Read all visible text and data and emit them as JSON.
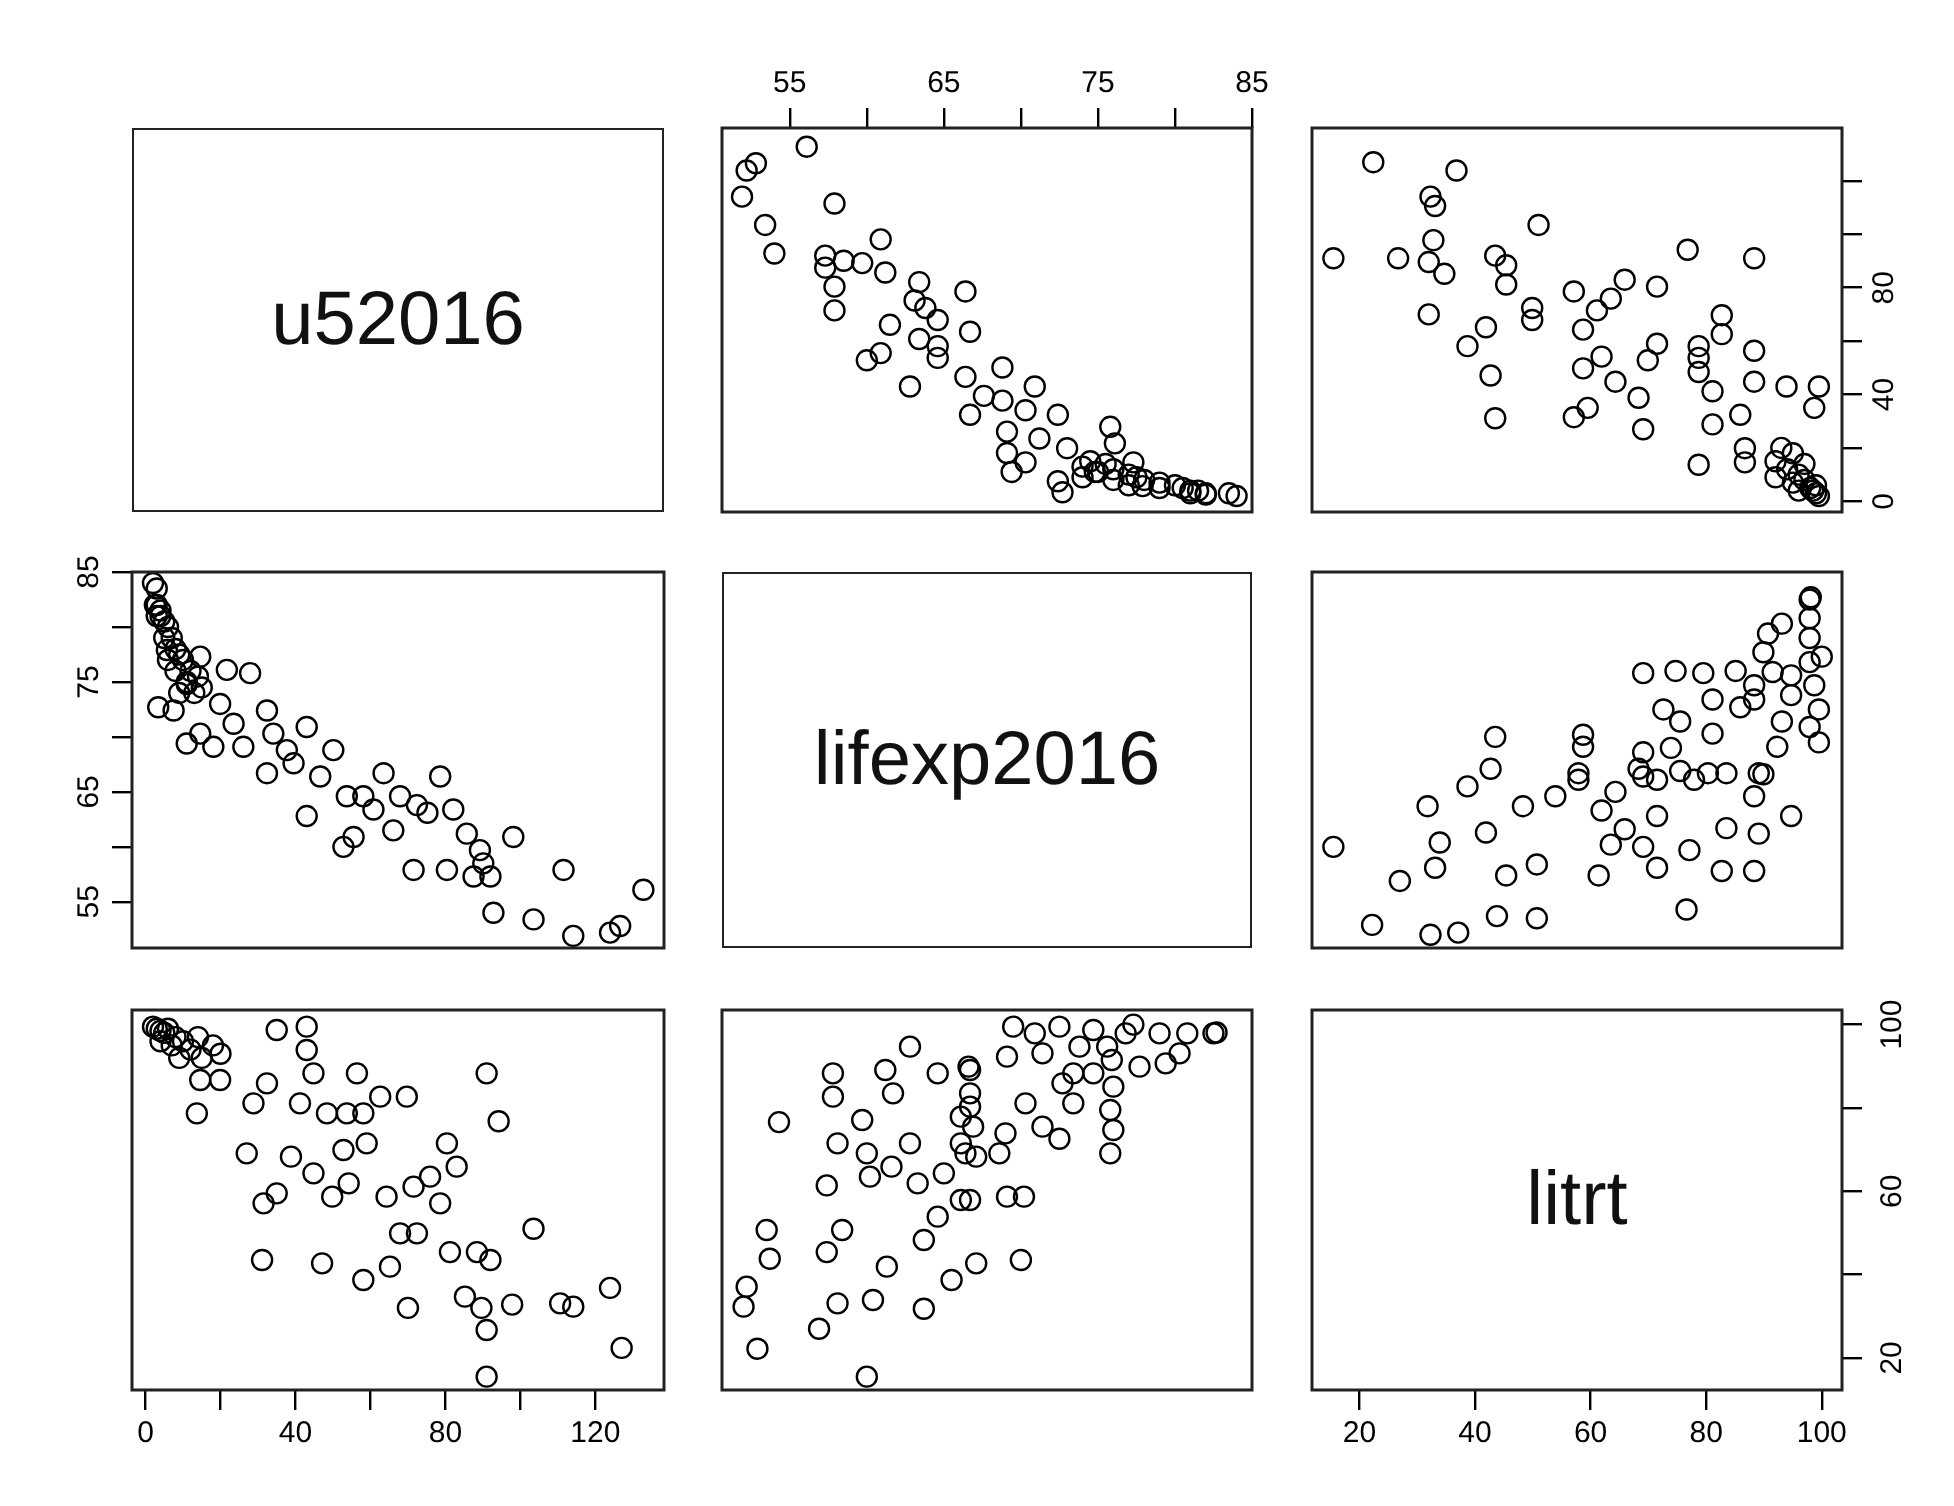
{
  "chart_data": [
    {
      "type": "other",
      "title": "u52016"
    },
    {
      "type": "scatter",
      "color": "#000000",
      "marker": "circle",
      "tick_labels": "x",
      "xlim": [
        50.6,
        85
      ],
      "xticks": [
        55,
        {
          "value": 60,
          "label": null
        },
        65,
        {
          "value": 70,
          "label": null
        },
        75,
        {
          "value": 80,
          "label": null
        },
        85
      ],
      "ylim": [
        -4,
        139.8
      ],
      "x": [
        84,
        83.5,
        82,
        81.5,
        81,
        80.5,
        81,
        82,
        80,
        79,
        79,
        78,
        77.5,
        77,
        77,
        76,
        76,
        75,
        75.5,
        74.5,
        74,
        74,
        72.7,
        69.4,
        69.1,
        70.3,
        69.1,
        75.8,
        72.4,
        70.3,
        66.7,
        70.9,
        62.8,
        68.8,
        60.0,
        60.9,
        64.6,
        66.7,
        63.4,
        61.5,
        57.9,
        63.8,
        66.4,
        57.9,
        63.4,
        61.2,
        59.7,
        57.3,
        60.9,
        54.0,
        53.4,
        57.9,
        51.9,
        52.2,
        52.8,
        56.1,
        68.8,
        66.4,
        64.6,
        67.6,
        71.2,
        73.0,
        74.8,
        77.9,
        77.3,
        76.1,
        72.4,
        64.6,
        57.3,
        63.1,
        58.5
      ],
      "values": [
        2,
        3,
        3,
        4,
        4,
        5,
        3,
        2.5,
        6,
        7,
        5,
        8,
        9,
        10,
        6,
        8,
        12,
        11,
        14,
        15,
        13,
        9,
        3.4,
        11,
        18.1,
        14.6,
        26.1,
        27.9,
        32.4,
        34.1,
        32.4,
        43,
        43,
        50.1,
        52.8,
        55.5,
        58.1,
        63.5,
        60.8,
        66.1,
        71.5,
        72.4,
        78.6,
        80.4,
        82.1,
        85.7,
        89.2,
        92,
        98.1,
        92.8,
        103.5,
        111.5,
        114.1,
        123.9,
        126.6,
        132.8,
        37.7,
        46.6,
        53.7,
        39.5,
        23.5,
        19.9,
        11,
        5.7,
        14.6,
        21.7,
        7.5,
        67.9,
        87.5,
        75.2,
        90.1
      ]
    },
    {
      "type": "scatter",
      "color": "#000000",
      "marker": "circle",
      "tick_labels": "y",
      "xlim": [
        11.8,
        103.5
      ],
      "ylim": [
        -4,
        139.8
      ],
      "yticks": [
        0,
        {
          "value": 20,
          "label": null
        },
        40,
        {
          "value": 60,
          "label": null
        },
        80,
        {
          "value": 100,
          "label": null
        },
        {
          "value": 120,
          "label": null
        }
      ],
      "x": [
        99.5,
        99,
        98.5,
        98,
        99,
        97,
        96,
        95,
        94,
        97,
        92,
        92,
        96,
        95,
        93,
        86.7,
        86.7,
        78.7,
        81.1,
        85.9,
        98.7,
        99.5,
        93.9,
        88.3,
        81.1,
        78.7,
        88.3,
        78.7,
        78.7,
        82.7,
        82.7,
        71.5,
        64.3,
        58.7,
        61.9,
        57.1,
        59.5,
        69.1,
        68.3,
        69.9,
        58.7,
        61.1,
        63.5,
        71.5,
        65.9,
        57.1,
        49.9,
        49.9,
        41.9,
        45.4,
        45.4,
        43.5,
        88.3,
        76.8,
        51.0,
        43.5,
        42.7,
        38.7,
        32.0,
        34.7,
        32.0,
        26.7,
        32.8,
        33.1,
        32.3,
        36.8,
        22.4,
        15.5
      ],
      "values": [
        2,
        3,
        4,
        5,
        6,
        8,
        10,
        7,
        12,
        14,
        15,
        9,
        4,
        18,
        20,
        14.6,
        19.9,
        13.7,
        28.8,
        32.4,
        35,
        43,
        43,
        44.8,
        41.2,
        48.4,
        56.4,
        53.7,
        58.1,
        62.6,
        69.7,
        59,
        44.8,
        49.8,
        54.2,
        31.5,
        35,
        27,
        38.8,
        52.8,
        64.3,
        71.5,
        75.9,
        80.4,
        83,
        78.6,
        67.9,
        72.4,
        65.2,
        81.2,
        88.4,
        92,
        91,
        94.2,
        103.5,
        31.1,
        47.1,
        58.1,
        70,
        85.2,
        89.6,
        91,
        97.8,
        110.6,
        114.1,
        123.9,
        127,
        91
      ]
    },
    {
      "type": "scatter",
      "color": "#000000",
      "marker": "circle",
      "tick_labels": "y",
      "xlim": [
        -3.6,
        138.3
      ],
      "ylim": [
        50.8,
        85
      ],
      "yticks": [
        55,
        {
          "value": 60,
          "label": null
        },
        65,
        {
          "value": 70,
          "label": null
        },
        75,
        {
          "value": 80,
          "label": null
        },
        85
      ],
      "x": [
        2,
        3,
        3,
        4,
        4,
        5,
        3,
        2.5,
        6,
        7,
        5,
        8,
        9,
        10,
        6,
        8,
        12,
        11,
        14,
        15,
        13,
        9,
        3.4,
        11,
        18.1,
        14.6,
        26.1,
        27.9,
        32.4,
        34.1,
        32.4,
        43,
        43,
        50.1,
        52.8,
        55.5,
        58.1,
        63.5,
        60.8,
        66.1,
        71.5,
        72.4,
        78.6,
        80.4,
        82.1,
        85.7,
        89.2,
        92,
        98.1,
        92.8,
        103.5,
        111.5,
        114.1,
        123.9,
        126.6,
        132.8,
        37.7,
        46.6,
        53.7,
        39.5,
        23.5,
        19.9,
        11,
        5.7,
        14.6,
        21.7,
        7.5,
        67.9,
        87.5,
        75.2,
        90.1
      ],
      "values": [
        84,
        83.5,
        82,
        81.5,
        81,
        80.5,
        81,
        82,
        80,
        79,
        79,
        78,
        77.5,
        77,
        77,
        76,
        76,
        75,
        75.5,
        74.5,
        74,
        74,
        72.7,
        69.4,
        69.1,
        70.3,
        69.1,
        75.8,
        72.4,
        70.3,
        66.7,
        70.9,
        62.8,
        68.8,
        60.0,
        60.9,
        64.6,
        66.7,
        63.4,
        61.5,
        57.9,
        63.8,
        66.4,
        57.9,
        63.4,
        61.2,
        59.7,
        57.3,
        60.9,
        54.0,
        53.4,
        57.9,
        51.9,
        52.2,
        52.8,
        56.1,
        68.8,
        66.4,
        64.6,
        67.6,
        71.2,
        73.0,
        74.8,
        77.9,
        77.3,
        76.1,
        72.4,
        64.6,
        57.3,
        63.1,
        58.5
      ]
    },
    {
      "type": "other",
      "title": "lifexp2016"
    },
    {
      "type": "scatter",
      "color": "#000000",
      "marker": "circle",
      "tick_labels": false,
      "xlim": [
        11.8,
        103.5
      ],
      "ylim": [
        50.8,
        85
      ],
      "x": [
        32.3,
        37.1,
        22.2,
        50.7,
        43.8,
        76.6,
        27.0,
        61.4,
        45.4,
        88.3,
        82.7,
        71.5,
        33.1,
        50.7,
        77.1,
        69.1,
        15.5,
        63.5,
        33.9,
        89.1,
        41.9,
        83.5,
        65.9,
        94.7,
        71.5,
        61.9,
        48.3,
        31.8,
        88.3,
        53.9,
        64.3,
        38.7,
        57.9,
        89.9,
        77.9,
        71.5,
        83.5,
        89.1,
        80.3,
        75.5,
        69.1,
        57.9,
        58.7,
        58.7,
        42.7,
        43.5,
        68.3,
        69.1,
        73.9,
        81.1,
        75.5,
        72.6,
        81.1,
        85.9,
        93.1,
        69.1,
        74.7,
        79.5,
        85.1,
        88.3,
        99.5,
        92.3,
        99.5,
        98.7,
        97.9,
        89.9,
        90.7,
        97.9,
        93.1,
        97.9,
        97.9,
        98.1,
        94.7,
        94.7,
        97.9,
        100,
        88.3,
        91.5
      ],
      "values": [
        52.0,
        52.2,
        52.9,
        53.5,
        53.7,
        54.3,
        56.9,
        57.4,
        57.4,
        57.8,
        57.8,
        58.1,
        58.1,
        58.4,
        59.7,
        60.0,
        60.0,
        60.2,
        60.4,
        61.2,
        61.3,
        61.7,
        61.6,
        62.8,
        62.8,
        63.3,
        63.7,
        63.7,
        64.6,
        64.6,
        65.0,
        65.5,
        66.1,
        66.6,
        66.1,
        66.1,
        66.7,
        66.7,
        66.7,
        66.9,
        66.4,
        66.7,
        69.1,
        70.2,
        67.1,
        70.0,
        67.1,
        68.6,
        69.0,
        70.3,
        71.4,
        72.5,
        73.4,
        72.7,
        71.4,
        75.8,
        76.0,
        75.8,
        76.0,
        73.4,
        69.5,
        69.1,
        72.5,
        74.7,
        76.8,
        77.7,
        79.4,
        79.0,
        80.3,
        80.8,
        82.5,
        82.7,
        75.6,
        73.8,
        70.9,
        77.3,
        74.7,
        75.9
      ]
    },
    {
      "type": "scatter",
      "color": "#000000",
      "marker": "circle",
      "tick_labels": "x",
      "xlim": [
        -3.6,
        138.3
      ],
      "xticks": [
        0,
        {
          "value": 20,
          "label": null
        },
        40,
        {
          "value": 60,
          "label": null
        },
        80,
        {
          "value": 100,
          "label": null
        },
        120
      ],
      "ylim": [
        12.3,
        103.5
      ],
      "x": [
        2,
        3,
        4,
        5,
        6,
        8,
        10,
        7,
        12,
        14,
        15,
        9,
        4,
        18,
        20,
        14.6,
        19.9,
        13.7,
        28.8,
        32.4,
        35,
        43,
        43,
        44.8,
        41.2,
        48.4,
        56.4,
        53.7,
        58.1,
        62.6,
        69.7,
        59,
        44.8,
        49.8,
        54.2,
        31.5,
        35,
        27,
        38.8,
        52.8,
        64.3,
        71.5,
        75.9,
        80.4,
        83,
        78.6,
        67.9,
        72.4,
        65.2,
        81.2,
        88.4,
        92,
        91,
        94.2,
        103.5,
        31.1,
        47.1,
        58.1,
        70,
        85.2,
        89.6,
        91,
        97.8,
        110.6,
        114.1,
        123.9,
        127,
        91
      ],
      "values": [
        99.5,
        99,
        98.5,
        98,
        99,
        97,
        96,
        95,
        94,
        97,
        92,
        92,
        96,
        95,
        93,
        86.7,
        86.7,
        78.7,
        81.1,
        85.9,
        98.7,
        99.5,
        93.9,
        88.3,
        81.1,
        78.7,
        88.3,
        78.7,
        78.7,
        82.7,
        82.7,
        71.5,
        64.3,
        58.7,
        61.9,
        57.1,
        59.5,
        69.1,
        68.3,
        69.9,
        58.7,
        61.1,
        63.5,
        71.5,
        65.9,
        57.1,
        49.9,
        49.9,
        41.9,
        45.4,
        45.4,
        43.5,
        88.3,
        76.8,
        51.0,
        43.5,
        42.7,
        38.7,
        32.0,
        34.7,
        32.0,
        26.7,
        32.8,
        33.1,
        32.3,
        36.8,
        22.4,
        15.5
      ]
    },
    {
      "type": "scatter",
      "color": "#000000",
      "marker": "circle",
      "tick_labels": false,
      "xlim": [
        50.6,
        85
      ],
      "ylim": [
        12.3,
        103.5
      ],
      "x": [
        52.0,
        52.2,
        52.9,
        53.5,
        53.7,
        54.3,
        56.9,
        57.4,
        57.4,
        57.8,
        57.8,
        58.1,
        58.1,
        58.4,
        59.7,
        60.0,
        60.0,
        60.2,
        60.4,
        61.2,
        61.3,
        61.7,
        61.6,
        62.8,
        62.8,
        63.3,
        63.7,
        63.7,
        64.6,
        64.6,
        65.0,
        65.5,
        66.1,
        66.6,
        66.1,
        66.1,
        66.7,
        66.7,
        66.7,
        66.9,
        66.4,
        66.7,
        69.1,
        70.2,
        67.1,
        70.0,
        67.1,
        68.6,
        69.0,
        70.3,
        71.4,
        72.5,
        73.4,
        72.7,
        71.4,
        75.8,
        76.0,
        75.8,
        76.0,
        73.4,
        69.5,
        69.1,
        72.5,
        74.7,
        76.8,
        77.7,
        79.4,
        79.0,
        80.3,
        80.8,
        82.5,
        82.7,
        75.6,
        73.8,
        70.9,
        77.3,
        74.7,
        75.9
      ],
      "values": [
        32.3,
        37.1,
        22.2,
        50.7,
        43.8,
        76.6,
        27.0,
        61.4,
        45.4,
        88.3,
        82.7,
        71.5,
        33.1,
        50.7,
        77.1,
        69.1,
        15.5,
        63.5,
        33.9,
        89.1,
        41.9,
        83.5,
        65.9,
        94.7,
        71.5,
        61.9,
        48.3,
        31.8,
        88.3,
        53.9,
        64.3,
        38.7,
        57.9,
        89.9,
        77.9,
        71.5,
        83.5,
        89.1,
        80.3,
        75.5,
        69.1,
        57.9,
        58.7,
        58.7,
        42.7,
        43.5,
        68.3,
        69.1,
        73.9,
        81.1,
        75.5,
        72.6,
        81.1,
        85.9,
        93.1,
        69.1,
        74.7,
        79.5,
        85.1,
        88.3,
        99.5,
        92.3,
        99.5,
        98.7,
        97.9,
        89.9,
        90.7,
        97.9,
        93.1,
        97.9,
        97.9,
        98.1,
        94.7,
        94.7,
        97.9,
        100,
        88.3,
        91.5
      ]
    },
    {
      "type": "scatter",
      "title": "litrt",
      "xlim": [
        11.8,
        103.5
      ],
      "xticks": [
        20,
        40,
        60,
        80,
        100
      ],
      "ylim": [
        12.3,
        103.5
      ],
      "yticks": [
        20,
        {
          "value": 40,
          "label": null
        },
        60,
        {
          "value": 80,
          "label": null
        },
        100
      ]
    }
  ]
}
